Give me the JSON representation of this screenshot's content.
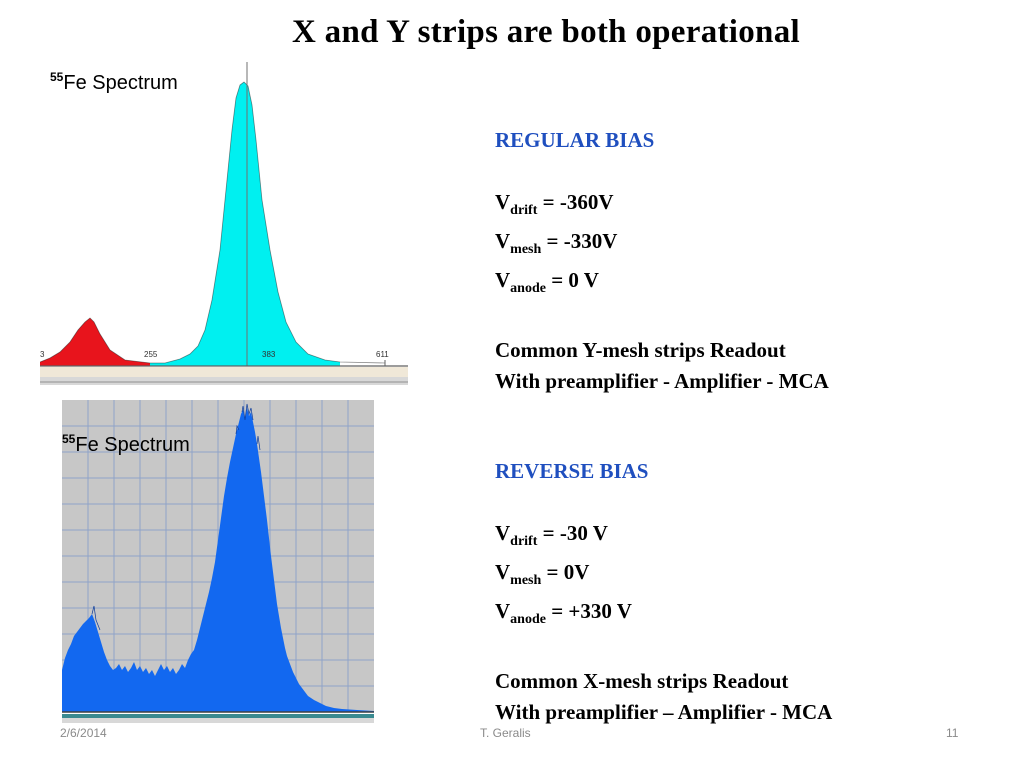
{
  "slide": {
    "title": "X and Y strips are both operational",
    "footer_date": "2/6/2014",
    "footer_author": "T. Geralis",
    "footer_page": "11"
  },
  "spectrum_top": {
    "label_sup": "55",
    "label_text": "Fe Spectrum",
    "ticks": [
      "3",
      "255",
      "383",
      "611"
    ],
    "colors": {
      "escape_peak": "#e8141c",
      "main_peak": "#00f0f0",
      "background": "#ffffff"
    }
  },
  "spectrum_bottom": {
    "label_sup": "55",
    "label_text": "Fe Spectrum",
    "colors": {
      "fill": "#1268f0",
      "background": "#c7c7c7",
      "grid": "#8fa3c8"
    }
  },
  "regular_bias": {
    "header": "REGULAR BIAS",
    "drift": {
      "label": "V",
      "sub": "drift",
      "value": " = -360V"
    },
    "mesh": {
      "label": "V",
      "sub": "mesh",
      "value": " = -330V"
    },
    "anode": {
      "label": "V",
      "sub": "anode",
      "value": " = 0 V"
    },
    "readout_line1": "Common Y-mesh strips Readout",
    "readout_line2": "With preamplifier - Amplifier - MCA"
  },
  "reverse_bias": {
    "header": "REVERSE BIAS",
    "drift": {
      "label": "V",
      "sub": "drift",
      "value": " = -30 V"
    },
    "mesh": {
      "label": "V",
      "sub": "mesh",
      "value": " = 0V"
    },
    "anode": {
      "label": "V",
      "sub": "anode",
      "value": " = +330 V"
    },
    "readout_line1": "Common X-mesh strips Readout",
    "readout_line2": "With preamplifier – Amplifier - MCA"
  }
}
